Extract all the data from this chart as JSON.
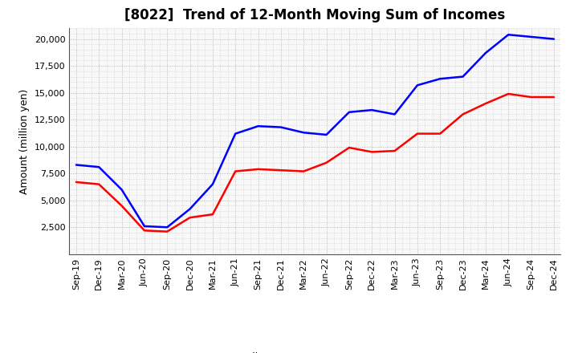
{
  "title": "[8022]  Trend of 12-Month Moving Sum of Incomes",
  "ylabel": "Amount (million yen)",
  "x_labels": [
    "Sep-19",
    "Dec-19",
    "Mar-20",
    "Jun-20",
    "Sep-20",
    "Dec-20",
    "Mar-21",
    "Jun-21",
    "Sep-21",
    "Dec-21",
    "Mar-22",
    "Jun-22",
    "Sep-22",
    "Dec-22",
    "Mar-23",
    "Jun-23",
    "Sep-23",
    "Dec-23",
    "Mar-24",
    "Jun-24",
    "Sep-24",
    "Dec-24"
  ],
  "ordinary_income": [
    8300,
    8100,
    6000,
    2600,
    2500,
    4200,
    6500,
    11200,
    11900,
    11800,
    11300,
    11100,
    13200,
    13400,
    13000,
    15700,
    16300,
    16500,
    18700,
    20400,
    20200,
    20000
  ],
  "net_income": [
    6700,
    6500,
    4500,
    2200,
    2100,
    3400,
    3700,
    7700,
    7900,
    7800,
    7700,
    8500,
    9900,
    9500,
    9600,
    11200,
    11200,
    13000,
    14000,
    14900,
    14600,
    14600
  ],
  "ordinary_color": "#0000FF",
  "net_color": "#FF0000",
  "ylim": [
    0,
    21000
  ],
  "yticks": [
    2500,
    5000,
    7500,
    10000,
    12500,
    15000,
    17500,
    20000
  ],
  "background_color": "#FFFFFF",
  "plot_bg_color": "#F8F8F8",
  "grid_color": "#888888",
  "line_width": 1.8,
  "title_fontsize": 12,
  "legend_fontsize": 9,
  "tick_fontsize": 8
}
